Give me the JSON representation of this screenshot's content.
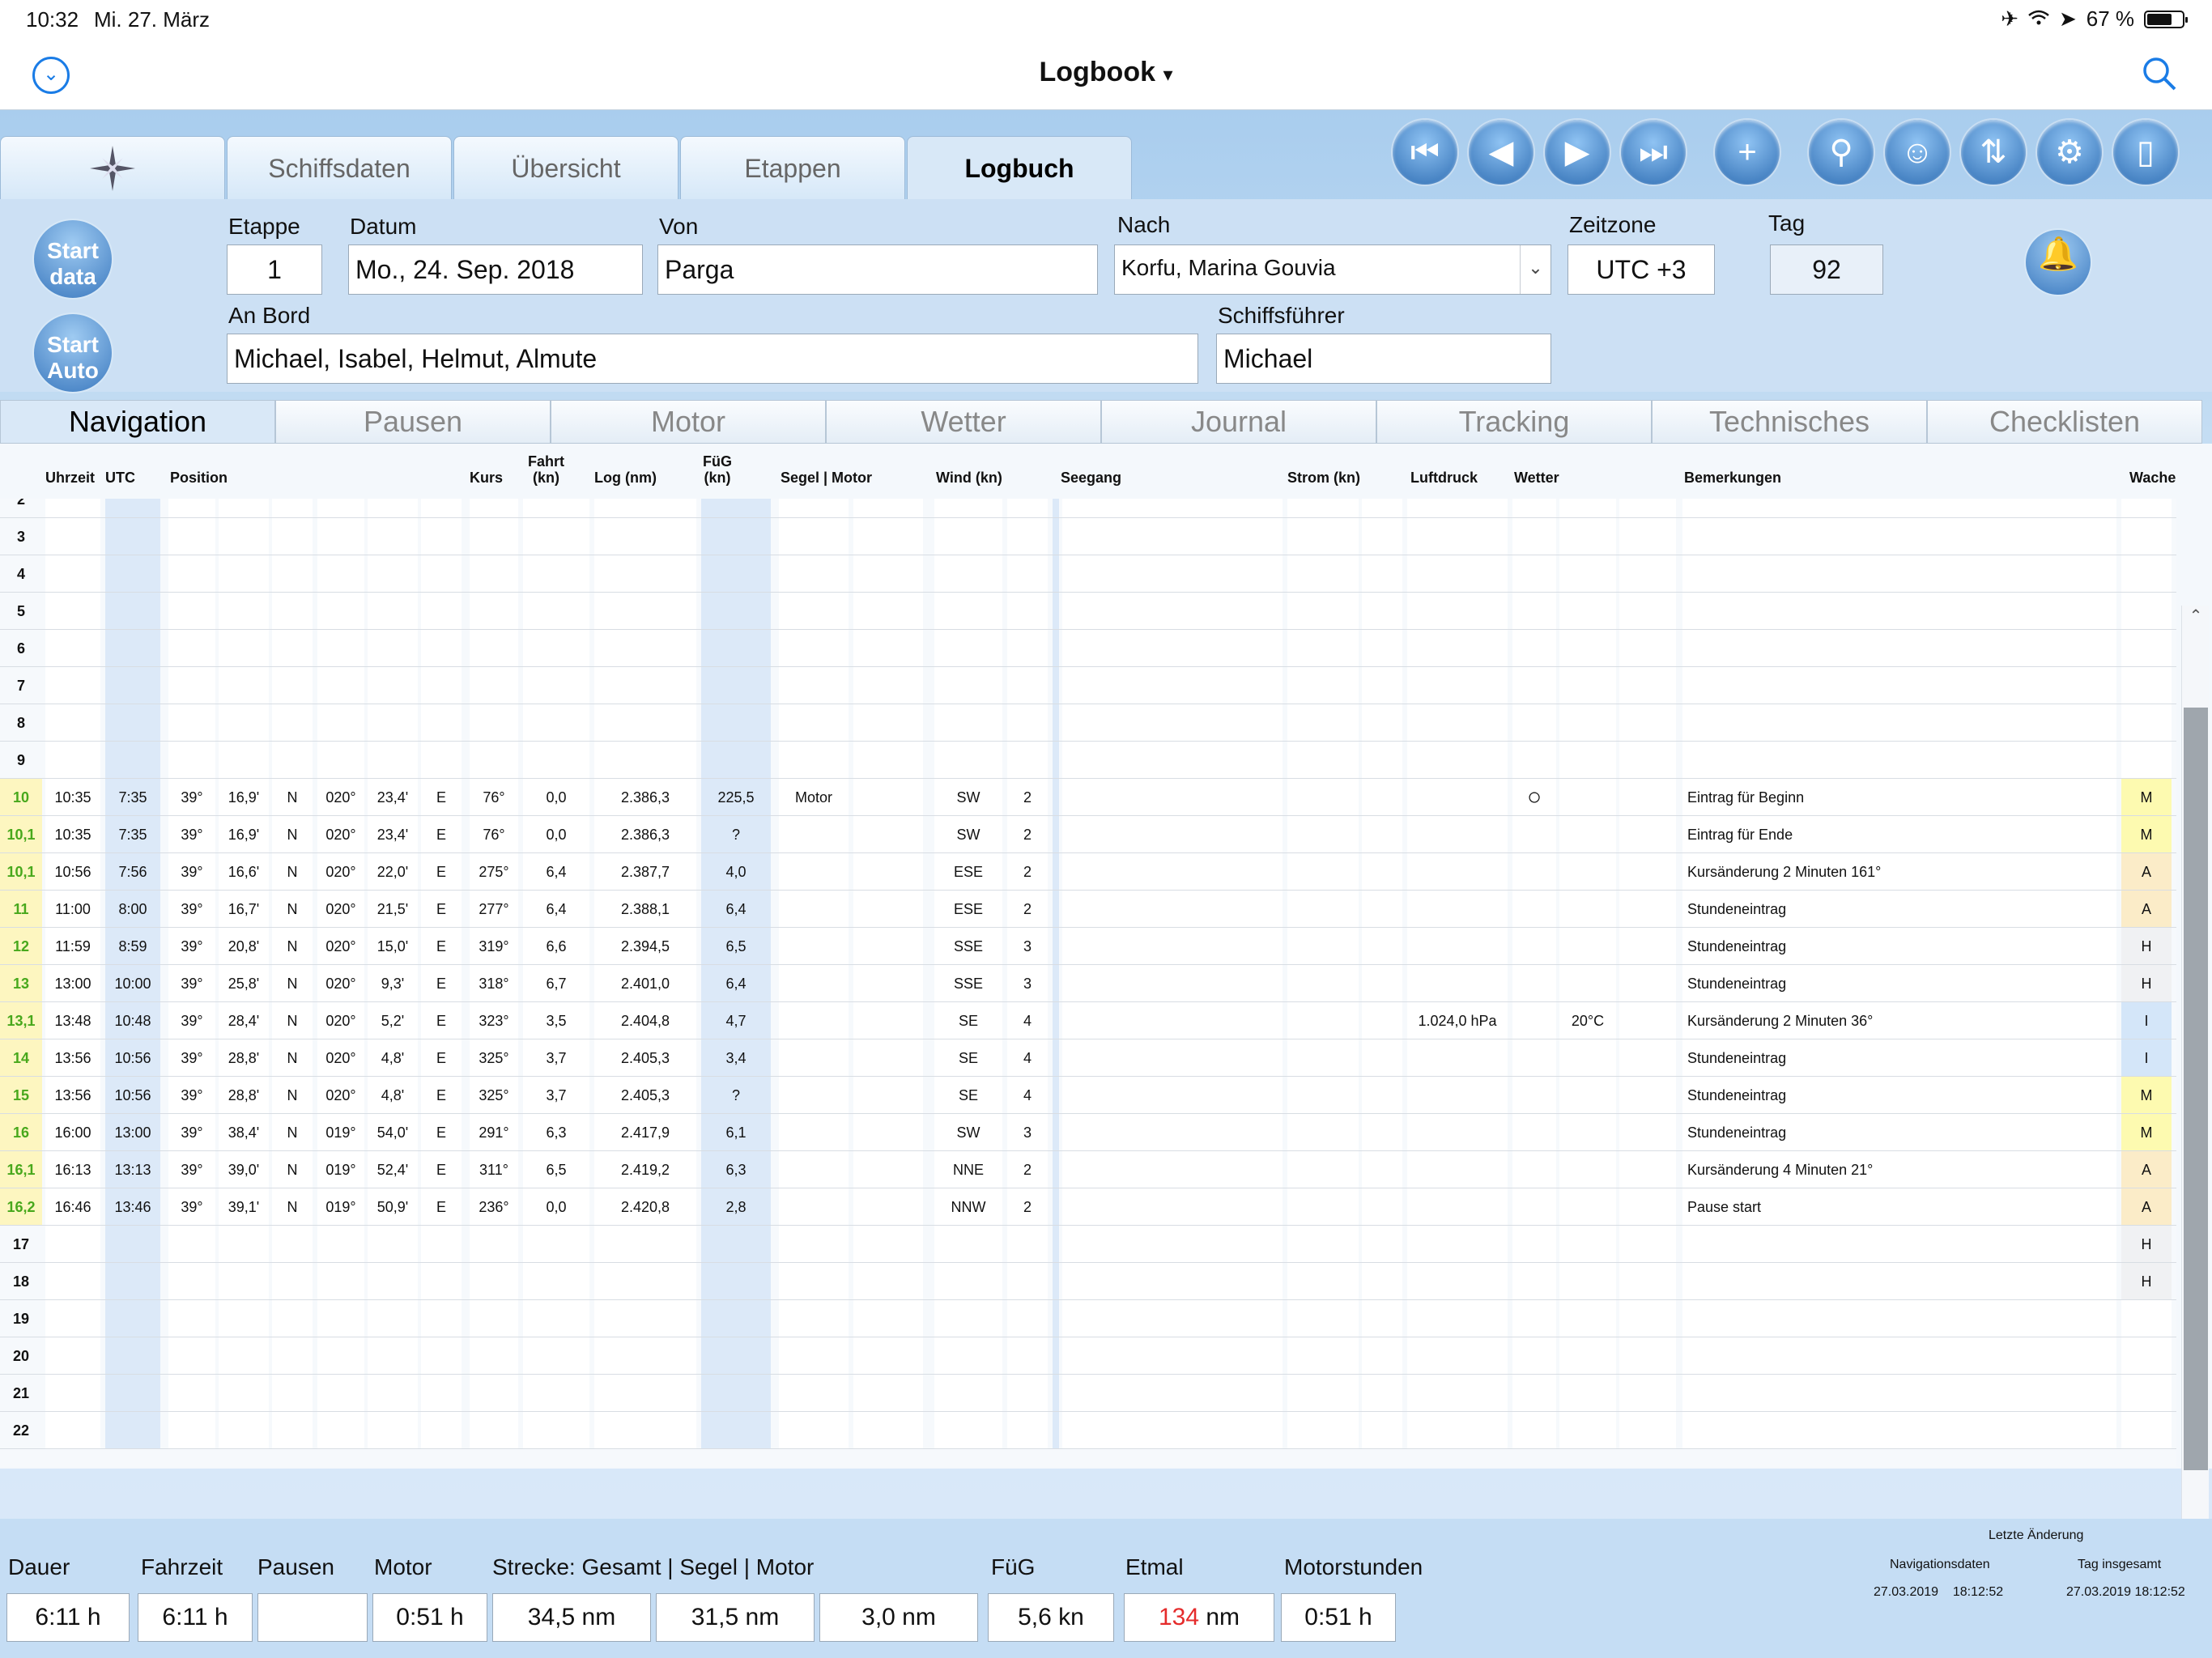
{
  "status": {
    "time": "10:32",
    "date": "Mi. 27. März",
    "battery": "67 %"
  },
  "nav": {
    "title": "Logbook",
    "dropdown": "▾"
  },
  "main_tabs": [
    "Schiffsdaten",
    "Übersicht",
    "Etappen",
    "Logbuch"
  ],
  "header": {
    "start_data": "Start data",
    "start_auto": "Start Auto",
    "etappe_label": "Etappe",
    "etappe": "1",
    "datum_label": "Datum",
    "datum": "Mo., 24. Sep. 2018",
    "von_label": "Von",
    "von": "Parga",
    "nach_label": "Nach",
    "nach": "Korfu, Marina Gouvia",
    "zeitzone_label": "Zeitzone",
    "zeitzone": "UTC +3",
    "tag_label": "Tag",
    "tag": "92",
    "anbord_label": "An Bord",
    "anbord": "Michael, Isabel, Helmut, Almute",
    "skipper_label": "Schiffsführer",
    "skipper": "Michael"
  },
  "sub_tabs": [
    "Navigation",
    "Pausen",
    "Motor",
    "Wetter",
    "Journal",
    "Tracking",
    "Technisches",
    "Checklisten"
  ],
  "columns": {
    "uhrzeit": "Uhrzeit",
    "utc": "UTC",
    "position": "Position",
    "kurs": "Kurs",
    "fahrt": "Fahrt\n(kn)",
    "log": "Log (nm)",
    "fug": "FüG\n(kn)",
    "segel": "Segel | Motor",
    "wind": "Wind (kn)",
    "seegang": "Seegang",
    "strom": "Strom (kn)",
    "luftdruck": "Luftdruck",
    "wetter": "Wetter",
    "bemerkungen": "Bemerkungen",
    "wache": "Wache"
  },
  "rows": [
    {
      "n": "2"
    },
    {
      "n": "3"
    },
    {
      "n": "4"
    },
    {
      "n": "5"
    },
    {
      "n": "6"
    },
    {
      "n": "7"
    },
    {
      "n": "8"
    },
    {
      "n": "9"
    },
    {
      "n": "10",
      "t": "10:35",
      "u": "7:35",
      "la": "39°",
      "lm": "16,9'",
      "ns": "N",
      "lo": "020°",
      "om": "23,4'",
      "ew": "E",
      "k": "76°",
      "f": "0,0",
      "lg": "2.386,3",
      "fg": "225,5",
      "sm": "Motor",
      "wd": "SW",
      "ws": "2",
      "wsym": "○",
      "bm": "Eintrag für Beginn",
      "w": "M"
    },
    {
      "n": "10,1",
      "t": "10:35",
      "u": "7:35",
      "la": "39°",
      "lm": "16,9'",
      "ns": "N",
      "lo": "020°",
      "om": "23,4'",
      "ew": "E",
      "k": "76°",
      "f": "0,0",
      "lg": "2.386,3",
      "fg": "?",
      "wd": "SW",
      "ws": "2",
      "bm": "Eintrag für Ende",
      "w": "M"
    },
    {
      "n": "10,1",
      "t": "10:56",
      "u": "7:56",
      "la": "39°",
      "lm": "16,6'",
      "ns": "N",
      "lo": "020°",
      "om": "22,0'",
      "ew": "E",
      "k": "275°",
      "f": "6,4",
      "lg": "2.387,7",
      "fg": "4,0",
      "wd": "ESE",
      "ws": "2",
      "bm": "Kursänderung 2 Minuten 161°",
      "w": "A"
    },
    {
      "n": "11",
      "t": "11:00",
      "u": "8:00",
      "la": "39°",
      "lm": "16,7'",
      "ns": "N",
      "lo": "020°",
      "om": "21,5'",
      "ew": "E",
      "k": "277°",
      "f": "6,4",
      "lg": "2.388,1",
      "fg": "6,4",
      "wd": "ESE",
      "ws": "2",
      "bm": "Stundeneintrag",
      "w": "A"
    },
    {
      "n": "12",
      "t": "11:59",
      "u": "8:59",
      "la": "39°",
      "lm": "20,8'",
      "ns": "N",
      "lo": "020°",
      "om": "15,0'",
      "ew": "E",
      "k": "319°",
      "f": "6,6",
      "lg": "2.394,5",
      "fg": "6,5",
      "wd": "SSE",
      "ws": "3",
      "bm": "Stundeneintrag",
      "w": "H"
    },
    {
      "n": "13",
      "t": "13:00",
      "u": "10:00",
      "la": "39°",
      "lm": "25,8'",
      "ns": "N",
      "lo": "020°",
      "om": "9,3'",
      "ew": "E",
      "k": "318°",
      "f": "6,7",
      "lg": "2.401,0",
      "fg": "6,4",
      "wd": "SSE",
      "ws": "3",
      "bm": "Stundeneintrag",
      "w": "H"
    },
    {
      "n": "13,1",
      "t": "13:48",
      "u": "10:48",
      "la": "39°",
      "lm": "28,4'",
      "ns": "N",
      "lo": "020°",
      "om": "5,2'",
      "ew": "E",
      "k": "323°",
      "f": "3,5",
      "lg": "2.404,8",
      "fg": "4,7",
      "wd": "SE",
      "ws": "4",
      "lp": "1.024,0 hPa",
      "tmp": "20°C",
      "bm": "Kursänderung 2 Minuten 36°",
      "w": "I"
    },
    {
      "n": "14",
      "t": "13:56",
      "u": "10:56",
      "la": "39°",
      "lm": "28,8'",
      "ns": "N",
      "lo": "020°",
      "om": "4,8'",
      "ew": "E",
      "k": "325°",
      "f": "3,7",
      "lg": "2.405,3",
      "fg": "3,4",
      "wd": "SE",
      "ws": "4",
      "bm": "Stundeneintrag",
      "w": "I"
    },
    {
      "n": "15",
      "t": "13:56",
      "u": "10:56",
      "la": "39°",
      "lm": "28,8'",
      "ns": "N",
      "lo": "020°",
      "om": "4,8'",
      "ew": "E",
      "k": "325°",
      "f": "3,7",
      "lg": "2.405,3",
      "fg": "?",
      "wd": "SE",
      "ws": "4",
      "bm": "Stundeneintrag",
      "w": "M"
    },
    {
      "n": "16",
      "t": "16:00",
      "u": "13:00",
      "la": "39°",
      "lm": "38,4'",
      "ns": "N",
      "lo": "019°",
      "om": "54,0'",
      "ew": "E",
      "k": "291°",
      "f": "6,3",
      "lg": "2.417,9",
      "fg": "6,1",
      "wd": "SW",
      "ws": "3",
      "bm": "Stundeneintrag",
      "w": "M"
    },
    {
      "n": "16,1",
      "t": "16:13",
      "u": "13:13",
      "la": "39°",
      "lm": "39,0'",
      "ns": "N",
      "lo": "019°",
      "om": "52,4'",
      "ew": "E",
      "k": "311°",
      "f": "6,5",
      "lg": "2.419,2",
      "fg": "6,3",
      "wd": "NNE",
      "ws": "2",
      "bm": "Kursänderung 4 Minuten 21°",
      "w": "A"
    },
    {
      "n": "16,2",
      "t": "16:46",
      "u": "13:46",
      "la": "39°",
      "lm": "39,1'",
      "ns": "N",
      "lo": "019°",
      "om": "50,9'",
      "ew": "E",
      "k": "236°",
      "f": "0,0",
      "lg": "2.420,8",
      "fg": "2,8",
      "wd": "NNW",
      "ws": "2",
      "bm": "Pause start",
      "w": "A"
    },
    {
      "n": "17",
      "w": "H"
    },
    {
      "n": "18",
      "w": "H"
    },
    {
      "n": "19"
    },
    {
      "n": "20"
    },
    {
      "n": "21"
    },
    {
      "n": "22"
    }
  ],
  "summary": {
    "dauer_label": "Dauer",
    "dauer": "6:11 h",
    "fahrzeit_label": "Fahrzeit",
    "fahrzeit": "6:11 h",
    "pausen_label": "Pausen",
    "pausen": "",
    "motor_label": "Motor",
    "motor": "0:51 h",
    "strecke_label": "Strecke: Gesamt | Segel | Motor",
    "gesamt": "34,5 nm",
    "segel": "31,5 nm",
    "motor_nm": "3,0 nm",
    "fug_label": "FüG",
    "fug": "5,6 kn",
    "etmal_label": "Etmal",
    "etmal_value": "134",
    "etmal_unit": "nm",
    "motorstunden_label": "Motorstunden",
    "motorstunden": "0:51 h",
    "letzte_label": "Letzte Änderung",
    "navdaten_label": "Navigationsdaten",
    "navdaten": "27.03.2019    18:12:52",
    "tag_ges_label": "Tag insgesamt",
    "tag_ges": "27.03.2019 18:12:52"
  }
}
